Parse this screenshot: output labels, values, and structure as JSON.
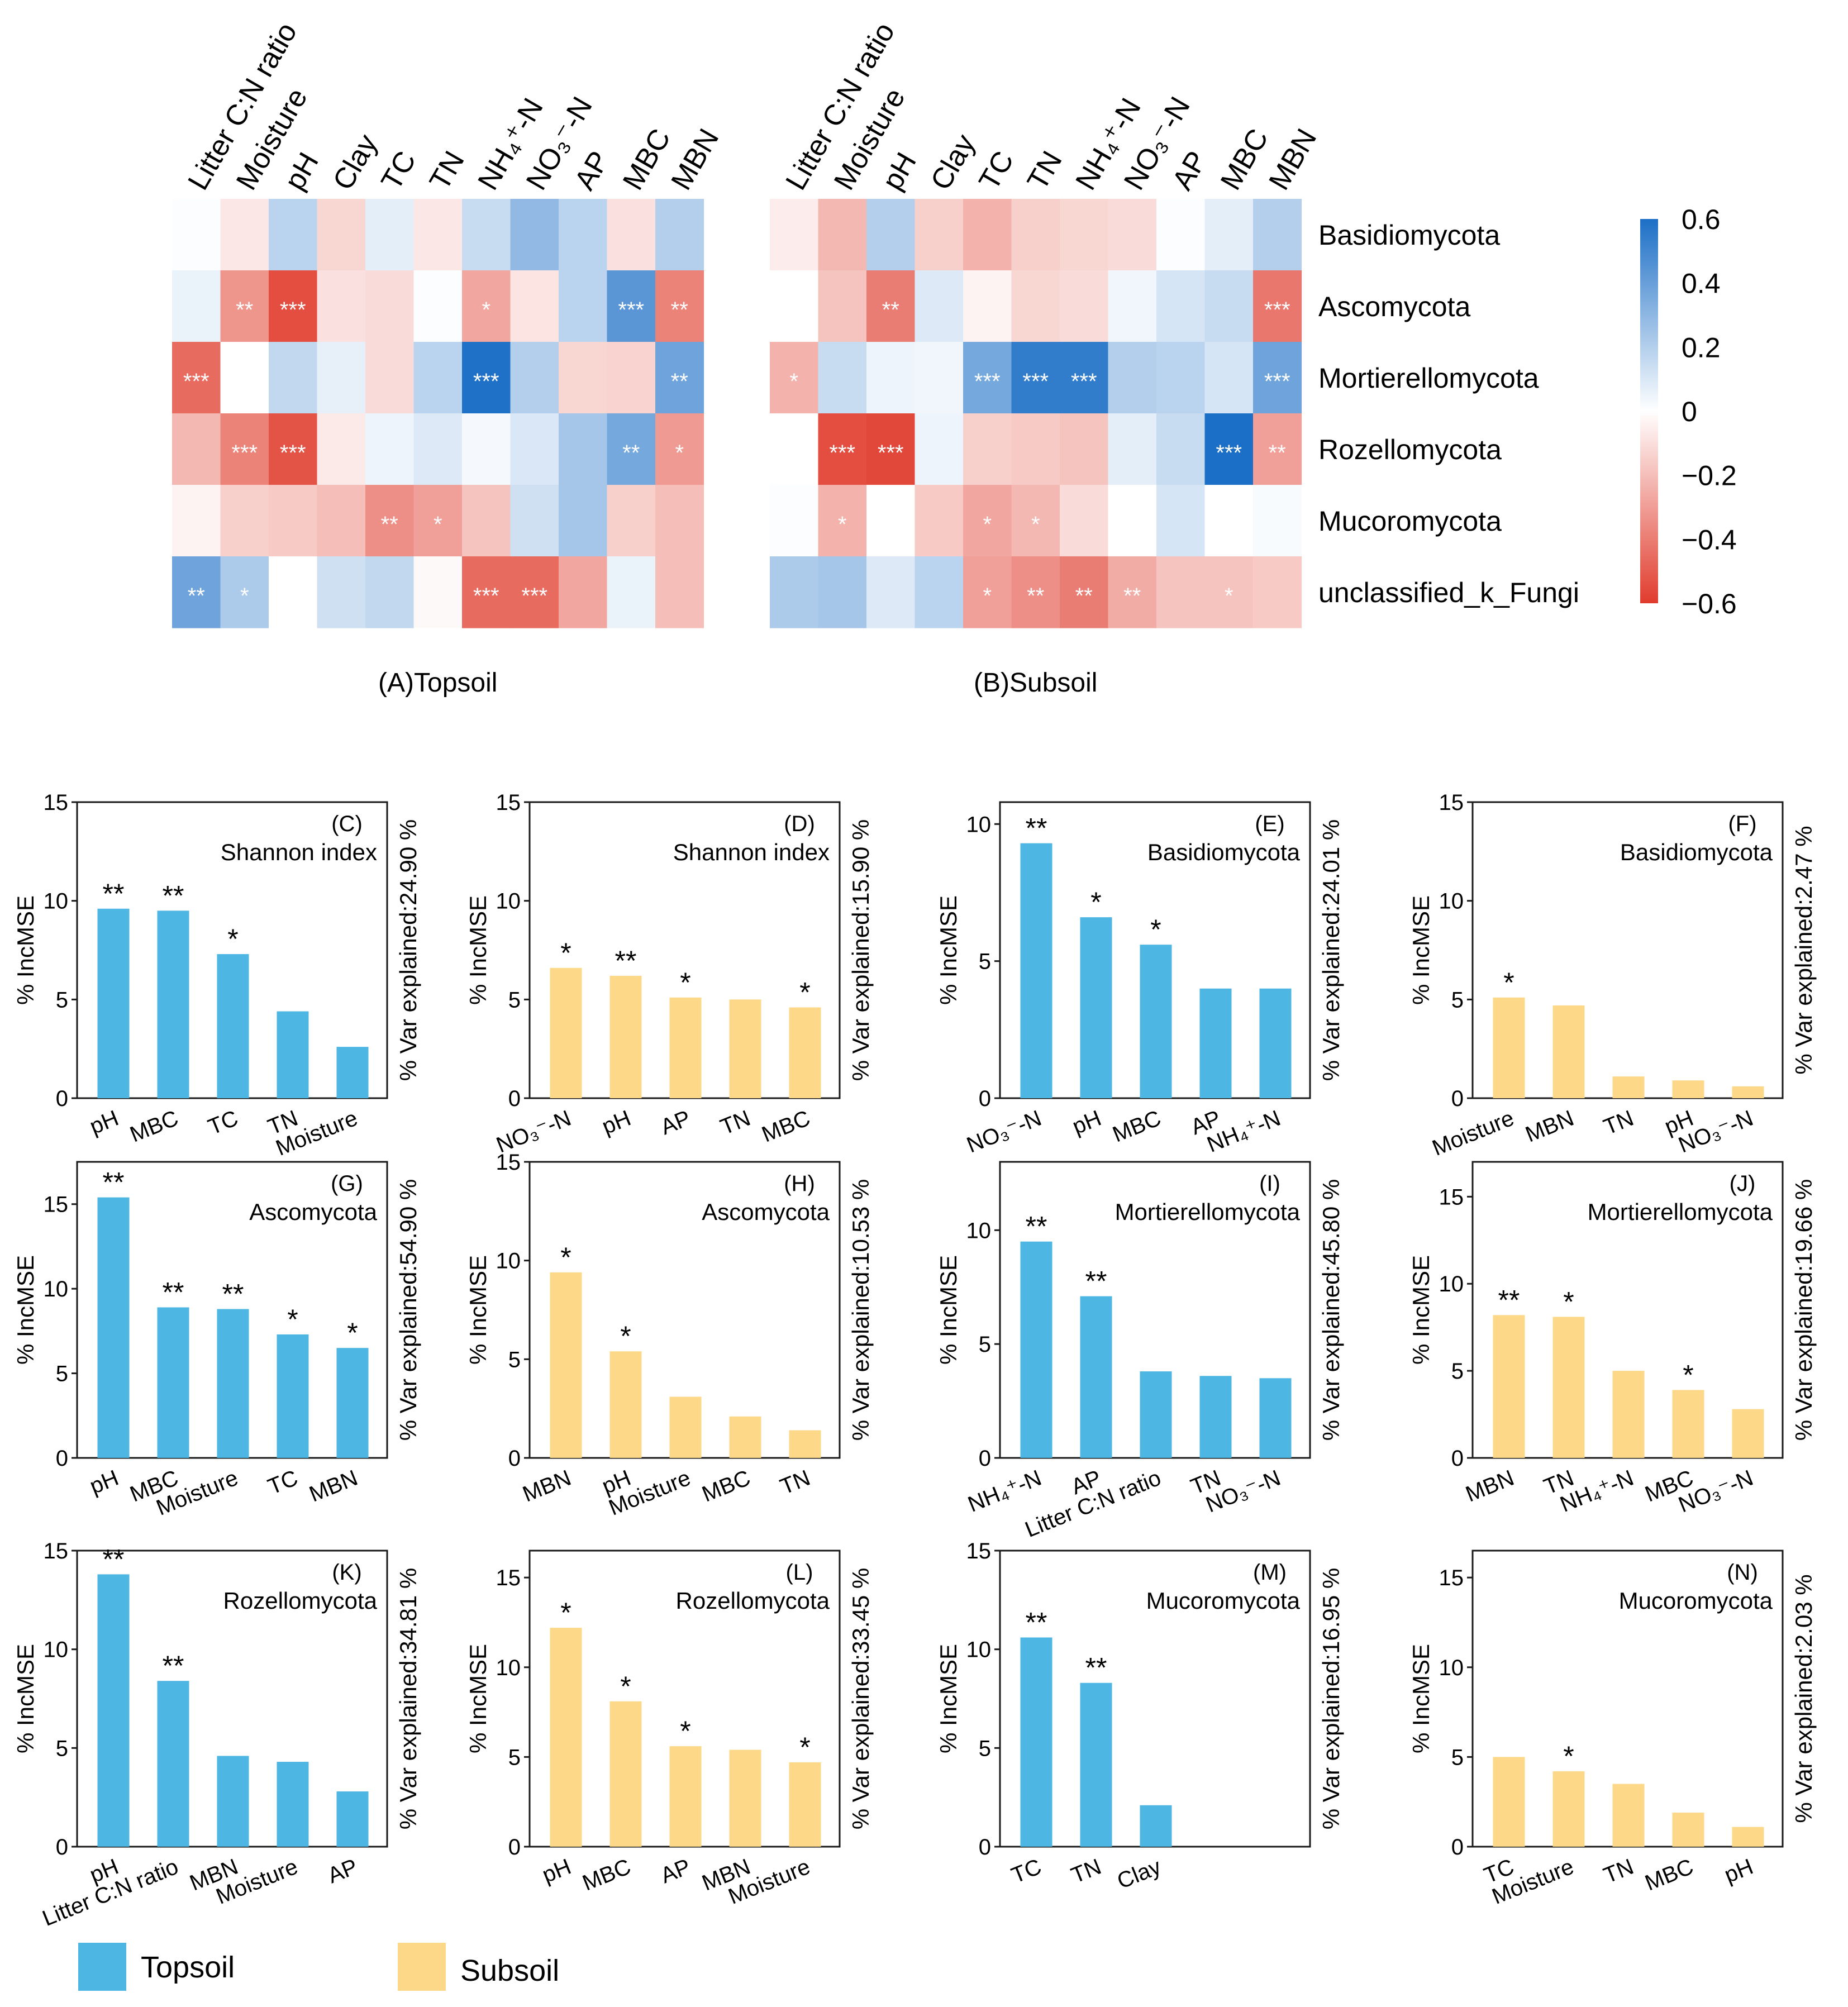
{
  "colors": {
    "topsoil": "#4db6e2",
    "subsoil": "#fdd888",
    "pos": "#1c6fc6",
    "neg": "#e03c2d",
    "mid": "#ffffff"
  },
  "heatmap": {
    "columns": [
      "Litter C:N ratio",
      "Moisture",
      "pH",
      "Clay",
      "TC",
      "TN",
      "NH₄⁺-N",
      "NO₃⁻-N",
      "AP",
      "MBC",
      "MBN"
    ],
    "rows": [
      "Basidiomycota",
      "Ascomycota",
      "Mortierellomycota",
      "Rozellomycota",
      "Mucoromycota",
      "unclassified_k_Fungi"
    ],
    "colorbar": {
      "ticks": [
        0.6,
        0.4,
        0.2,
        0,
        -0.2,
        -0.4,
        -0.6
      ],
      "tick_labels": [
        "0.6",
        "0.4",
        "0.2",
        "0",
        "−0.2",
        "−0.4",
        "−0.6"
      ]
    },
    "panels": [
      {
        "id": "A",
        "caption": "(A)Topsoil",
        "values": [
          [
            0.01,
            -0.08,
            0.2,
            -0.14,
            0.08,
            -0.08,
            0.16,
            0.32,
            0.2,
            -0.1,
            0.22
          ],
          [
            0.06,
            -0.36,
            -0.6,
            -0.1,
            -0.12,
            0.01,
            -0.3,
            -0.09,
            0.2,
            0.48,
            -0.42
          ],
          [
            -0.5,
            0,
            0.18,
            0.07,
            -0.12,
            0.2,
            0.65,
            0.22,
            -0.14,
            -0.15,
            0.42
          ],
          [
            -0.24,
            -0.42,
            -0.58,
            -0.07,
            0.05,
            0.1,
            0.03,
            0.11,
            0.26,
            0.4,
            -0.34
          ],
          [
            -0.04,
            -0.16,
            -0.18,
            -0.22,
            -0.38,
            -0.32,
            -0.2,
            0.14,
            0.26,
            -0.16,
            -0.22
          ],
          [
            0.42,
            0.24,
            0,
            0.14,
            0.18,
            -0.02,
            -0.5,
            -0.5,
            -0.3,
            0.06,
            -0.22
          ]
        ],
        "stars": [
          [
            "",
            "",
            "",
            "",
            "",
            "",
            "",
            "",
            "",
            "",
            ""
          ],
          [
            "",
            "**",
            "***",
            "",
            "",
            "",
            "*",
            "",
            "",
            "***",
            "**"
          ],
          [
            "***",
            "",
            "",
            "",
            "",
            "",
            "***",
            "",
            "",
            "",
            "**"
          ],
          [
            "",
            "***",
            "***",
            "",
            "",
            "",
            "",
            "",
            "",
            "**",
            "*"
          ],
          [
            "",
            "",
            "",
            "",
            "**",
            "*",
            "",
            "",
            "",
            "",
            ""
          ],
          [
            "**",
            "*",
            "",
            "",
            "",
            "",
            "***",
            "***",
            "",
            "",
            ""
          ]
        ]
      },
      {
        "id": "B",
        "caption": "(B)Subsoil",
        "values": [
          [
            -0.06,
            -0.24,
            0.22,
            -0.16,
            -0.26,
            -0.16,
            -0.14,
            -0.12,
            0.01,
            0.08,
            0.22
          ],
          [
            0,
            -0.2,
            -0.44,
            0.1,
            -0.04,
            -0.14,
            -0.12,
            0.04,
            0.12,
            0.16,
            -0.46
          ],
          [
            -0.26,
            0.16,
            0.05,
            0.04,
            0.4,
            0.6,
            0.6,
            0.22,
            0.2,
            0.12,
            0.42
          ],
          [
            0,
            -0.6,
            -0.62,
            0.05,
            -0.16,
            -0.18,
            -0.2,
            0.08,
            0.16,
            0.66,
            -0.32
          ],
          [
            0.01,
            -0.26,
            0,
            -0.18,
            -0.3,
            -0.24,
            -0.12,
            0,
            0.12,
            0,
            0.02
          ],
          [
            0.24,
            0.26,
            0.1,
            0.2,
            -0.32,
            -0.38,
            -0.44,
            -0.28,
            -0.2,
            -0.2,
            -0.18
          ]
        ],
        "stars": [
          [
            "",
            "",
            "",
            "",
            "",
            "",
            "",
            "",
            "",
            "",
            ""
          ],
          [
            "",
            "",
            "**",
            "",
            "",
            "",
            "",
            "",
            "",
            "",
            "***"
          ],
          [
            "*",
            "",
            "",
            "",
            "***",
            "***",
            "***",
            "",
            "",
            "",
            "***"
          ],
          [
            "",
            "***",
            "***",
            "",
            "",
            "",
            "",
            "",
            "",
            "***",
            "**"
          ],
          [
            "",
            "*",
            "",
            "",
            "*",
            "*",
            "",
            "",
            "",
            "",
            ""
          ],
          [
            "",
            "",
            "",
            "",
            "*",
            "**",
            "**",
            "**",
            "",
            "*",
            ""
          ]
        ]
      }
    ]
  },
  "chart_data": [
    {
      "id": "C",
      "type": "bar",
      "group": "topsoil",
      "title": "(C)",
      "label": "Shannon index",
      "var_explained": "% Var explained:24.90 %",
      "ylabel": "% IncMSE",
      "ylim": [
        0,
        15
      ],
      "yticks": [
        0,
        5,
        10,
        15
      ],
      "categories": [
        "pH",
        "MBC",
        "TC",
        "TN",
        "Moisture"
      ],
      "values": [
        9.6,
        9.5,
        7.3,
        4.4,
        2.6
      ],
      "stars": [
        "**",
        "**",
        "*",
        "",
        ""
      ]
    },
    {
      "id": "D",
      "type": "bar",
      "group": "subsoil",
      "title": "(D)",
      "label": "Shannon index",
      "var_explained": "% Var explained:15.90 %",
      "ylabel": "% IncMSE",
      "ylim": [
        0,
        15
      ],
      "yticks": [
        0,
        5,
        10,
        15
      ],
      "categories": [
        "NO₃⁻-N",
        "pH",
        "AP",
        "TN",
        "MBC"
      ],
      "values": [
        6.6,
        6.2,
        5.1,
        5.0,
        4.6
      ],
      "stars": [
        "*",
        "**",
        "*",
        "",
        "*"
      ]
    },
    {
      "id": "E",
      "type": "bar",
      "group": "topsoil",
      "title": "(E)",
      "label": "Basidiomycota",
      "var_explained": "% Var explained:24.01 %",
      "ylabel": "% IncMSE",
      "ylim": [
        0,
        10.8
      ],
      "yticks": [
        0,
        5,
        10
      ],
      "categories": [
        "NO₃⁻-N",
        "pH",
        "MBC",
        "AP",
        "NH₄⁺-N"
      ],
      "values": [
        9.3,
        6.6,
        5.6,
        4.0,
        4.0
      ],
      "stars": [
        "**",
        "*",
        "*",
        "",
        ""
      ]
    },
    {
      "id": "F",
      "type": "bar",
      "group": "subsoil",
      "title": "(F)",
      "label": "Basidiomycota",
      "var_explained": "% Var explained:2.47 %",
      "ylabel": "% IncMSE",
      "ylim": [
        0,
        15
      ],
      "yticks": [
        0,
        5,
        10,
        15
      ],
      "categories": [
        "Moisture",
        "MBN",
        "TN",
        "pH",
        "NO₃⁻-N"
      ],
      "values": [
        5.1,
        4.7,
        1.1,
        0.9,
        0.6
      ],
      "stars": [
        "*",
        "",
        "",
        "",
        ""
      ]
    },
    {
      "id": "G",
      "type": "bar",
      "group": "topsoil",
      "title": "(G)",
      "label": "Ascomycota",
      "var_explained": "% Var explained:54.90 %",
      "ylabel": "% IncMSE",
      "ylim": [
        0,
        17.5
      ],
      "yticks": [
        0,
        5,
        10,
        15
      ],
      "categories": [
        "pH",
        "MBC",
        "Moisture",
        "TC",
        "MBN"
      ],
      "values": [
        15.4,
        8.9,
        8.8,
        7.3,
        6.5
      ],
      "stars": [
        "**",
        "**",
        "**",
        "*",
        "*"
      ]
    },
    {
      "id": "H",
      "type": "bar",
      "group": "subsoil",
      "title": "(H)",
      "label": "Ascomycota",
      "var_explained": "% Var explained:10.53 %",
      "ylabel": "% IncMSE",
      "ylim": [
        0,
        15
      ],
      "yticks": [
        0,
        5,
        10,
        15
      ],
      "categories": [
        "MBN",
        "pH",
        "Moisture",
        "MBC",
        "TN"
      ],
      "values": [
        9.4,
        5.4,
        3.1,
        2.1,
        1.4
      ],
      "stars": [
        "*",
        "*",
        "",
        "",
        ""
      ]
    },
    {
      "id": "I",
      "type": "bar",
      "group": "topsoil",
      "title": "(I)",
      "label": "Mortierellomycota",
      "var_explained": "% Var explained:45.80 %",
      "ylabel": "% IncMSE",
      "ylim": [
        0,
        13
      ],
      "yticks": [
        0,
        5,
        10
      ],
      "categories": [
        "NH₄⁺-N",
        "AP",
        "Litter C:N ratio",
        "TN",
        "NO₃⁻-N"
      ],
      "values": [
        9.5,
        7.1,
        3.8,
        3.6,
        3.5
      ],
      "stars": [
        "**",
        "**",
        "",
        "",
        ""
      ]
    },
    {
      "id": "J",
      "type": "bar",
      "group": "subsoil",
      "title": "(J)",
      "label": "Mortierellomycota",
      "var_explained": "% Var explained:19.66 %",
      "ylabel": "% IncMSE",
      "ylim": [
        0,
        17
      ],
      "yticks": [
        0,
        5,
        10,
        15
      ],
      "categories": [
        "MBN",
        "TN",
        "NH₄⁺-N",
        "MBC",
        "NO₃⁻-N"
      ],
      "values": [
        8.2,
        8.1,
        5.0,
        3.9,
        2.8
      ],
      "stars": [
        "**",
        "*",
        "",
        "*",
        ""
      ]
    },
    {
      "id": "K",
      "type": "bar",
      "group": "topsoil",
      "title": "(K)",
      "label": "Rozellomycota",
      "var_explained": "% Var explained:34.81 %",
      "ylabel": "% IncMSE",
      "ylim": [
        0,
        15
      ],
      "yticks": [
        0,
        5,
        10,
        15
      ],
      "categories": [
        "pH",
        "Litter C:N ratio",
        "MBN",
        "Moisture",
        "AP"
      ],
      "values": [
        13.8,
        8.4,
        4.6,
        4.3,
        2.8
      ],
      "stars": [
        "**",
        "**",
        "",
        "",
        ""
      ]
    },
    {
      "id": "L",
      "type": "bar",
      "group": "subsoil",
      "title": "(L)",
      "label": "Rozellomycota",
      "var_explained": "% Var explained:33.45 %",
      "ylabel": "% IncMSE",
      "ylim": [
        0,
        16.5
      ],
      "yticks": [
        0,
        5,
        10,
        15
      ],
      "categories": [
        "pH",
        "MBC",
        "AP",
        "MBN",
        "Moisture"
      ],
      "values": [
        12.2,
        8.1,
        5.6,
        5.4,
        4.7
      ],
      "stars": [
        "*",
        "*",
        "*",
        "",
        "*"
      ]
    },
    {
      "id": "M",
      "type": "bar",
      "group": "topsoil",
      "title": "(M)",
      "label": "Mucoromycota",
      "var_explained": "% Var explained:16.95 %",
      "ylabel": "% IncMSE",
      "ylim": [
        0,
        15
      ],
      "yticks": [
        0,
        5,
        10,
        15
      ],
      "categories": [
        "TC",
        "TN",
        "Clay"
      ],
      "values": [
        10.6,
        8.3,
        2.1
      ],
      "stars": [
        "**",
        "**",
        ""
      ]
    },
    {
      "id": "N",
      "type": "bar",
      "group": "subsoil",
      "title": "(N)",
      "label": "Mucoromycota",
      "var_explained": "% Var explained:2.03 %",
      "ylabel": "% IncMSE",
      "ylim": [
        0,
        16.5
      ],
      "yticks": [
        0,
        5,
        10,
        15
      ],
      "categories": [
        "TC",
        "Moisture",
        "TN",
        "MBC",
        "pH"
      ],
      "values": [
        5.0,
        4.2,
        3.5,
        1.9,
        1.1
      ],
      "stars": [
        "",
        "*",
        "",
        "",
        ""
      ]
    }
  ],
  "legend": {
    "topsoil": "Topsoil",
    "subsoil": "Subsoil"
  }
}
